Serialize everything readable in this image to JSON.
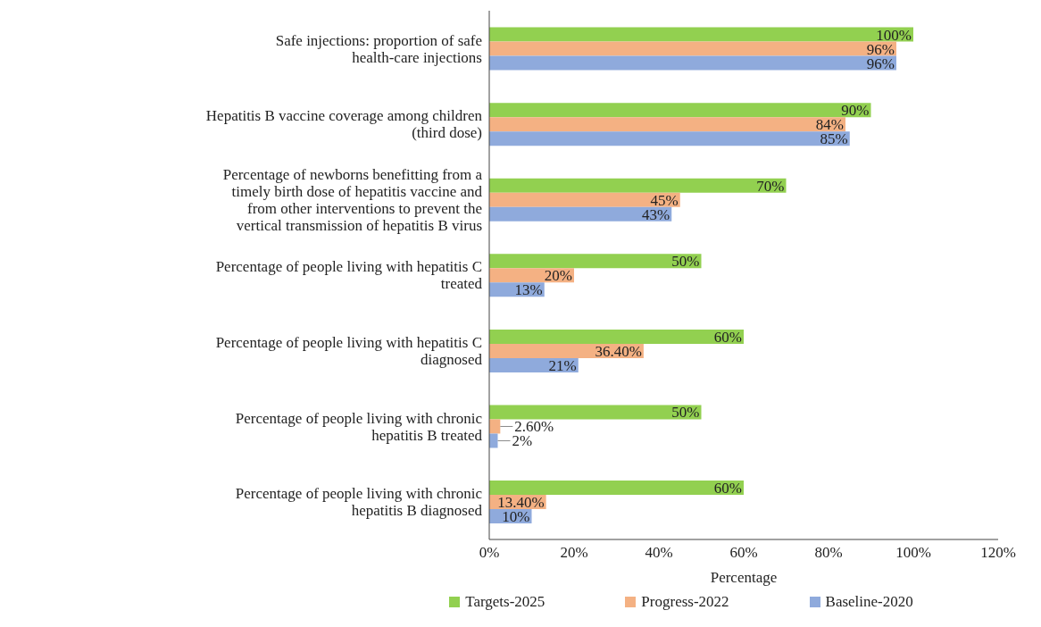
{
  "chart_data": {
    "type": "bar",
    "orientation": "horizontal",
    "xlabel": "Percentage",
    "categories": [
      "Safe injections: proportion of safe health-care injections",
      "Hepatitis B vaccine coverage among children (third dose)",
      "Percentage of newborns benefitting from a timely birth dose of hepatitis vaccine and from other interventions to prevent the vertical transmission of hepatitis B virus",
      "Percentage of people living with hepatitis C treated",
      "Percentage of people living with hepatitis C diagnosed",
      "Percentage of people living with chronic hepatitis B treated",
      "Percentage of people living with chronic hepatitis B diagnosed"
    ],
    "series": [
      {
        "name": "Targets-2025",
        "color": "#92d050",
        "values": [
          100,
          90,
          70,
          50,
          60,
          50,
          60
        ],
        "value_labels": [
          "100%",
          "90%",
          "70%",
          "50%",
          "60%",
          "50%",
          "60%"
        ]
      },
      {
        "name": "Progress-2022",
        "color": "#f4b183",
        "values": [
          96,
          84,
          45,
          20,
          36.4,
          2.6,
          13.4
        ],
        "value_labels": [
          "96%",
          "84%",
          "45%",
          "20%",
          "36.40%",
          "2.60%",
          "13.40%"
        ]
      },
      {
        "name": "Baseline-2020",
        "color": "#8faadc",
        "values": [
          96,
          85,
          43,
          13,
          21,
          2,
          10
        ],
        "value_labels": [
          "96%",
          "85%",
          "43%",
          "13%",
          "21%",
          "2%",
          "10%"
        ]
      }
    ],
    "xlim": [
      0,
      120
    ],
    "xticks": [
      {
        "value": 0,
        "label": "0%"
      },
      {
        "value": 20,
        "label": "20%"
      },
      {
        "value": 40,
        "label": "40%"
      },
      {
        "value": 60,
        "label": "60%"
      },
      {
        "value": 80,
        "label": "80%"
      },
      {
        "value": 100,
        "label": "100%"
      },
      {
        "value": 120,
        "label": "120%"
      }
    ],
    "legend": "bottom"
  }
}
